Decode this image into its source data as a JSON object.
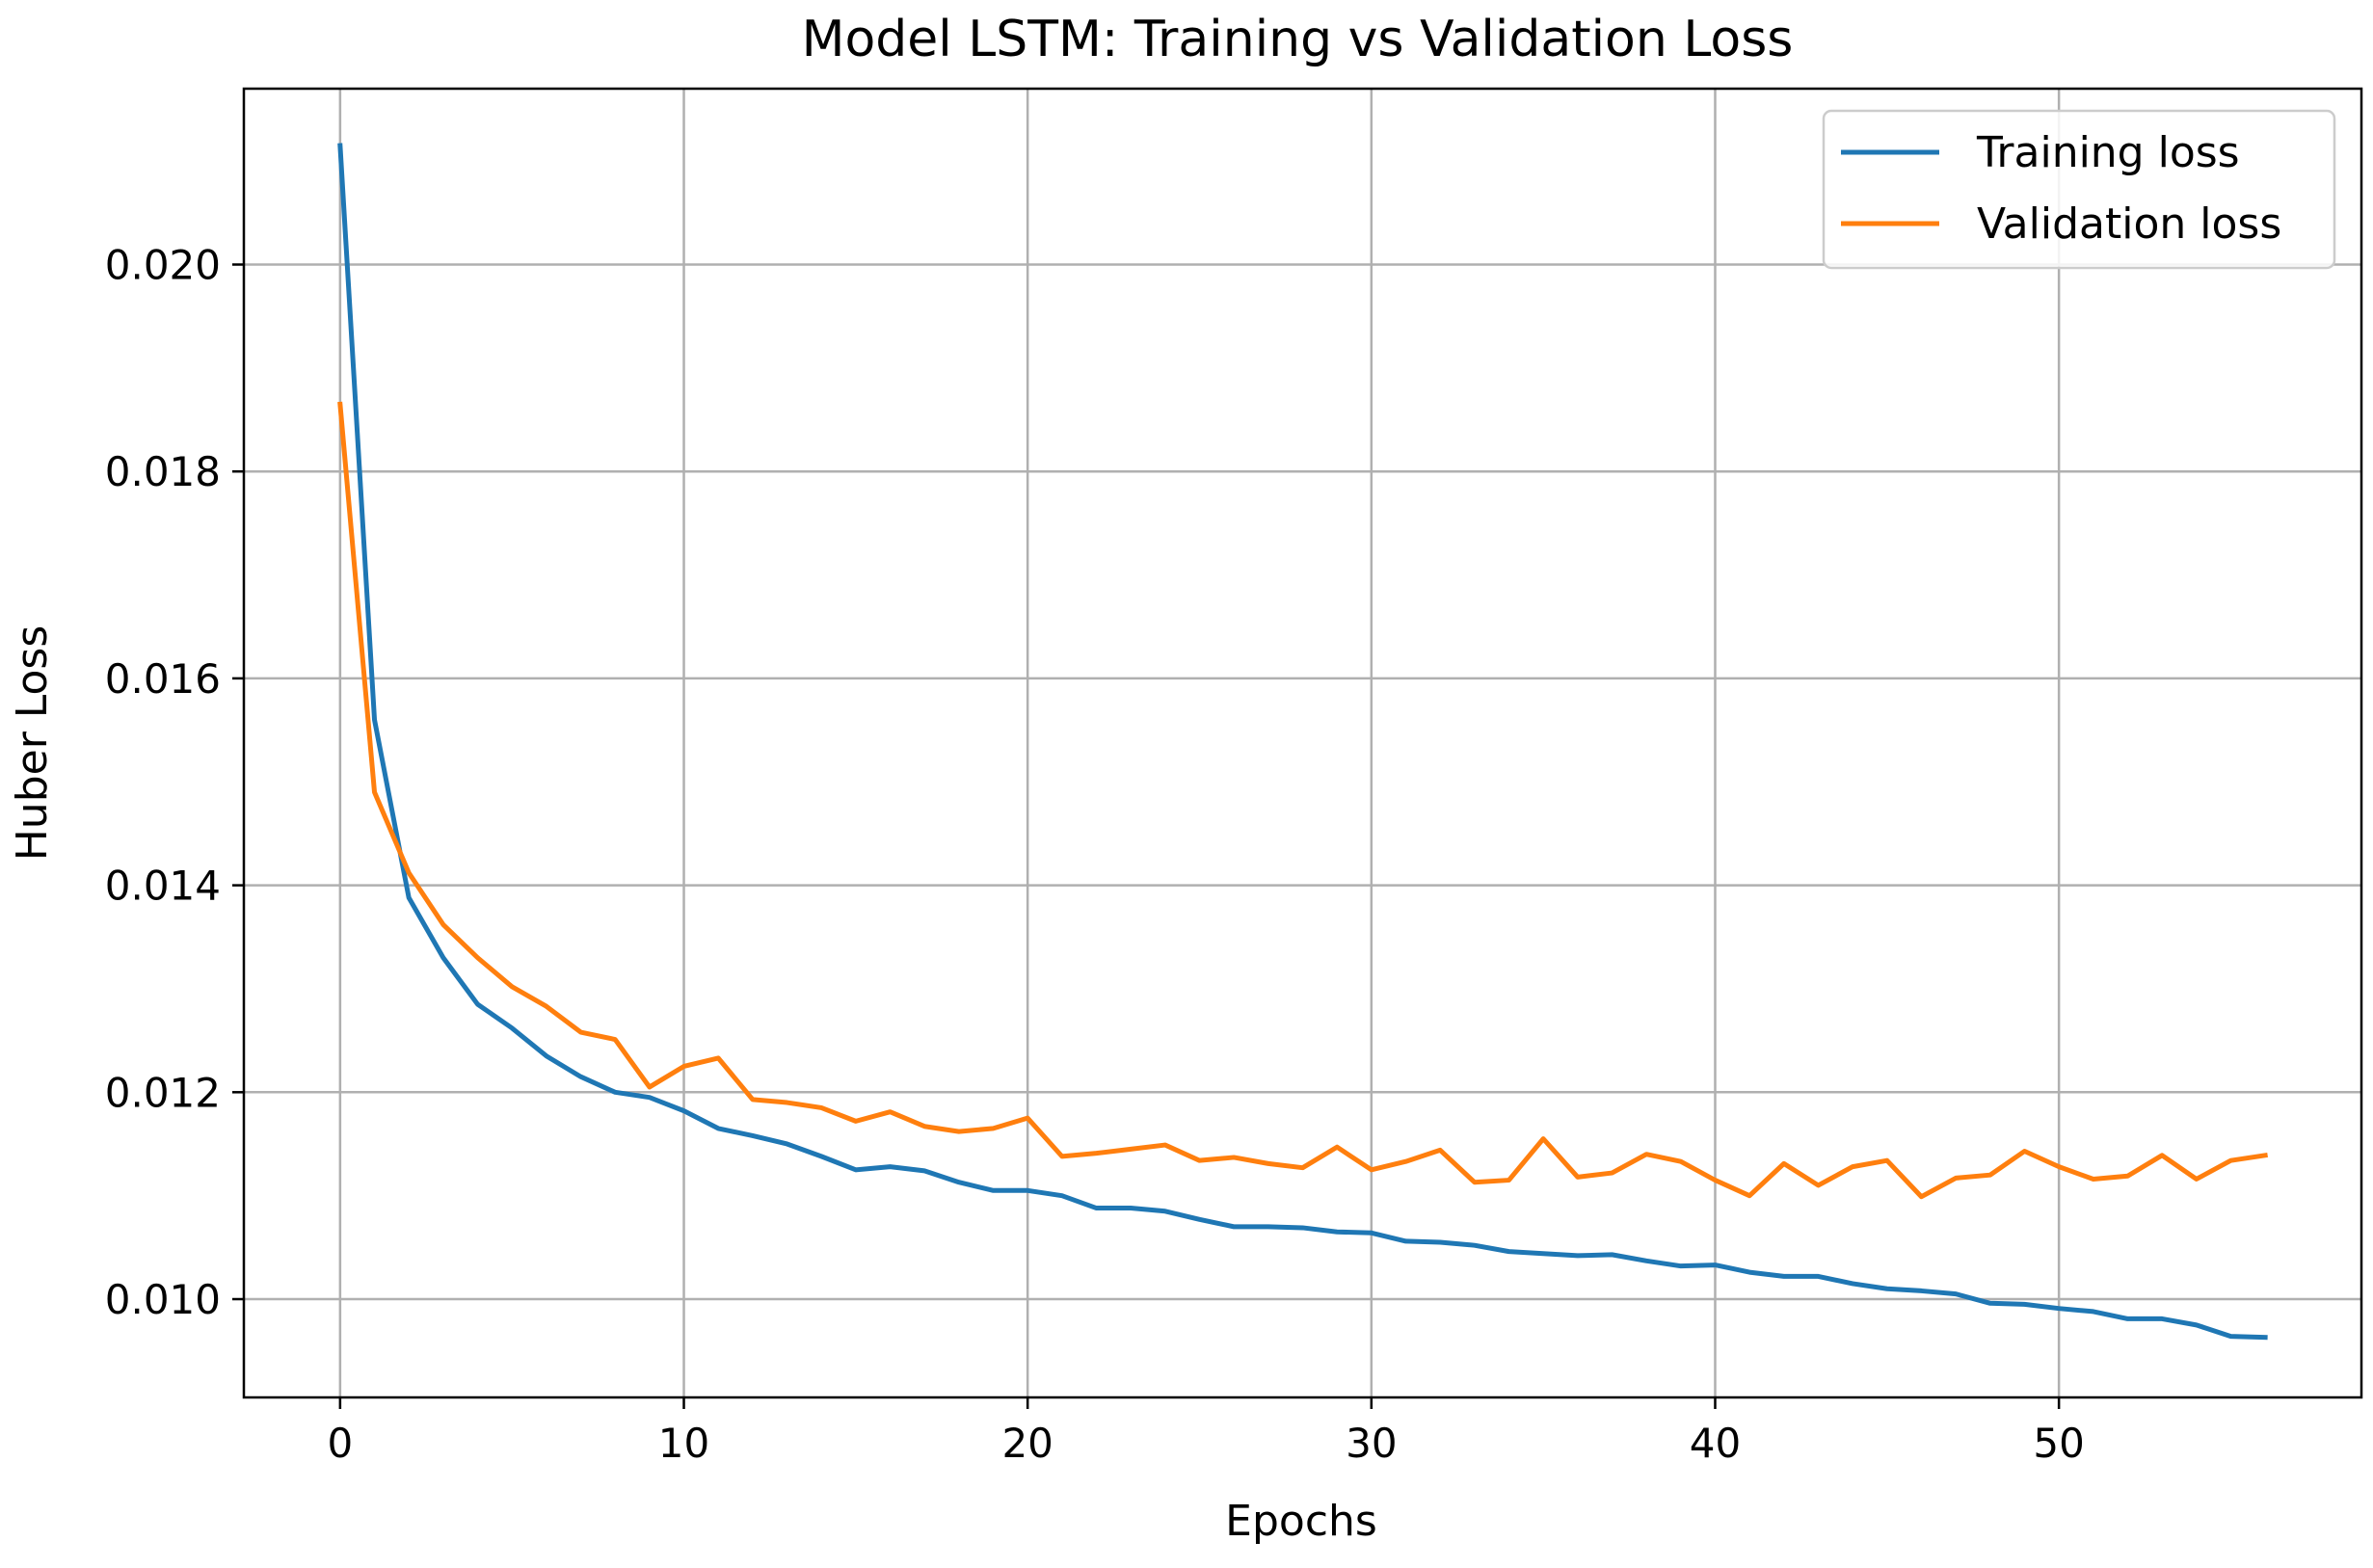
{
  "chart_data": {
    "type": "line",
    "title": "Model LSTM: Training vs Validation Loss",
    "xlabel": "Epochs",
    "ylabel": "Huber Loss",
    "xlim": [
      -2.8,
      58.8
    ],
    "ylim": [
      0.00905,
      0.0217
    ],
    "xticks": [
      0,
      10,
      20,
      30,
      40,
      50
    ],
    "xtick_labels": [
      "0",
      "10",
      "20",
      "30",
      "40",
      "50"
    ],
    "yticks": [
      0.01,
      0.012,
      0.014,
      0.016,
      0.018,
      0.02
    ],
    "ytick_labels": [
      "0.010",
      "0.012",
      "0.014",
      "0.016",
      "0.018",
      "0.020"
    ],
    "grid": true,
    "legend_position": "top-right",
    "x": [
      0,
      1,
      2,
      3,
      4,
      5,
      6,
      7,
      8,
      9,
      10,
      11,
      12,
      13,
      14,
      15,
      16,
      17,
      18,
      19,
      20,
      21,
      22,
      23,
      24,
      25,
      26,
      27,
      28,
      29,
      30,
      31,
      32,
      33,
      34,
      35,
      36,
      37,
      38,
      39,
      40,
      41,
      42,
      43,
      44,
      45,
      46,
      47,
      48,
      49,
      50,
      51,
      52,
      53,
      54,
      55,
      56
    ],
    "series": [
      {
        "name": "Training loss",
        "color": "#1f77b4",
        "values": [
          0.02115,
          0.0156,
          0.01388,
          0.0133,
          0.01285,
          0.01262,
          0.01235,
          0.01215,
          0.012,
          0.01195,
          0.01182,
          0.01165,
          0.01158,
          0.0115,
          0.01138,
          0.01125,
          0.01128,
          0.01124,
          0.01113,
          0.01105,
          0.01105,
          0.011,
          0.01088,
          0.01088,
          0.01085,
          0.01077,
          0.0107,
          0.0107,
          0.01069,
          0.01065,
          0.01064,
          0.01056,
          0.01055,
          0.01052,
          0.01046,
          0.01044,
          0.01042,
          0.01043,
          0.01037,
          0.01032,
          0.01033,
          0.01026,
          0.01022,
          0.01022,
          0.01015,
          0.0101,
          0.01008,
          0.01005,
          0.00996,
          0.00995,
          0.00991,
          0.00988,
          0.00981,
          0.00981,
          0.00975,
          0.00964,
          0.00963
        ]
      },
      {
        "name": "Validation loss",
        "color": "#ff7f0e",
        "values": [
          0.01865,
          0.0149,
          0.01412,
          0.01362,
          0.0133,
          0.01302,
          0.01283,
          0.01258,
          0.01251,
          0.01205,
          0.01225,
          0.01233,
          0.01193,
          0.0119,
          0.01185,
          0.01172,
          0.01181,
          0.01167,
          0.01162,
          0.01165,
          0.01175,
          0.01138,
          0.01141,
          0.01145,
          0.01149,
          0.01134,
          0.01137,
          0.01131,
          0.01127,
          0.01147,
          0.01125,
          0.01133,
          0.01144,
          0.01113,
          0.01115,
          0.01155,
          0.01118,
          0.01122,
          0.0114,
          0.01133,
          0.01115,
          0.011,
          0.01131,
          0.0111,
          0.01128,
          0.01134,
          0.01099,
          0.01117,
          0.0112,
          0.01143,
          0.01128,
          0.01116,
          0.01119,
          0.01139,
          0.01116,
          0.01134,
          0.01139
        ]
      }
    ]
  }
}
